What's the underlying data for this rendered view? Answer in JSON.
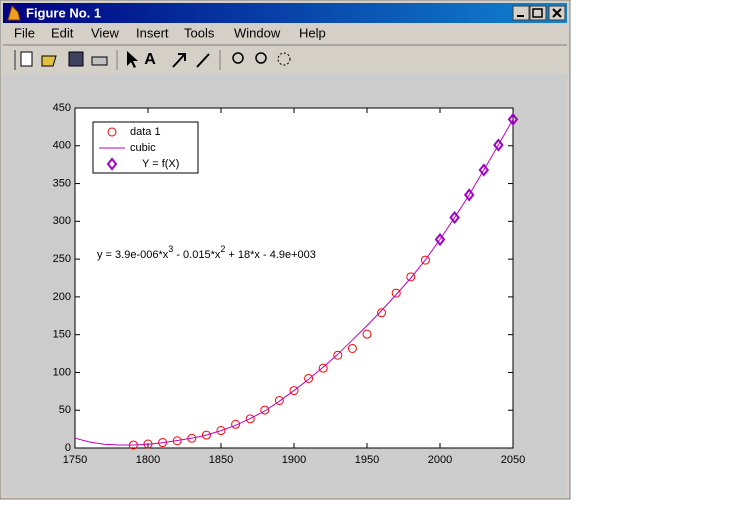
{
  "window": {
    "title": "Figure No. 1",
    "menus": [
      "File",
      "Edit",
      "View",
      "Insert",
      "Tools",
      "Window",
      "Help"
    ],
    "toolbar_text": "A"
  },
  "chart_data": {
    "type": "line",
    "annotation": [
      "y = 3.9e-006*x",
      "3",
      " - 0.015*x",
      "2",
      " + 18*x - 4.9e+003"
    ],
    "xlim": [
      1750,
      2050
    ],
    "xticks": [
      1750,
      1800,
      1850,
      1900,
      1950,
      2000,
      2050
    ],
    "ylim": [
      0,
      450
    ],
    "yticks": [
      0,
      50,
      100,
      150,
      200,
      250,
      300,
      350,
      400,
      450
    ],
    "grid": false,
    "legend": "upper left",
    "series": [
      {
        "name": "data 1",
        "color": "#ff0000",
        "marker": "circle",
        "line": false,
        "x": [
          1790,
          1800,
          1810,
          1820,
          1830,
          1840,
          1850,
          1860,
          1870,
          1880,
          1890,
          1900,
          1910,
          1920,
          1930,
          1940,
          1950,
          1960,
          1970,
          1980,
          1990
        ],
        "values": [
          3.9,
          5.3,
          7.2,
          9.6,
          12.9,
          17.1,
          23.1,
          31.4,
          38.6,
          50.2,
          62.9,
          76.0,
          92.0,
          105.7,
          122.8,
          131.7,
          150.7,
          179.0,
          205.0,
          226.5,
          248.7
        ]
      },
      {
        "name": "cubic",
        "color": "#c000c0",
        "marker": "none",
        "line": true,
        "x": [
          1750,
          1760,
          1770,
          1780,
          1790,
          1800,
          1810,
          1820,
          1830,
          1840,
          1850,
          1860,
          1870,
          1880,
          1890,
          1900,
          1910,
          1920,
          1930,
          1940,
          1950,
          1960,
          1970,
          1980,
          1990,
          2000,
          2010,
          2020,
          2030,
          2040,
          2050
        ],
        "values": [
          13,
          8,
          5,
          4,
          4,
          5,
          7,
          10,
          13,
          17,
          23,
          30,
          39,
          49,
          62,
          76,
          91,
          107,
          124,
          143,
          162,
          182,
          203,
          225,
          249,
          276,
          305,
          335,
          368,
          401,
          435
        ]
      },
      {
        "name": "    Y = f(X)",
        "color": "#a000c8",
        "marker": "diamond",
        "line": false,
        "x": [
          2000,
          2010,
          2020,
          2030,
          2040,
          2050
        ],
        "values": [
          276,
          305,
          335,
          368,
          401,
          435
        ]
      }
    ]
  }
}
